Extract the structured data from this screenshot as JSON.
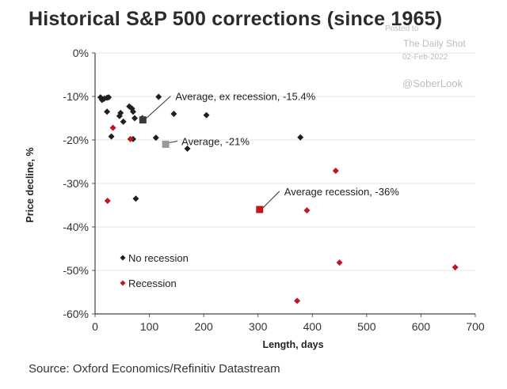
{
  "header": {
    "title": "Historical S&P 500 corrections (since 1965)"
  },
  "watermark": {
    "line1": "Posted to",
    "line2": "The Daily Shot",
    "line3": "02-Feb-2022",
    "line4": "@SoberLook"
  },
  "footer": {
    "source": "Source: Oxford Economics/Refinitiv Datastream"
  },
  "colors": {
    "no_recession": "#1f1f1f",
    "recession": "#c0161f",
    "average_grey": "#9a9a9a",
    "grid": "#e6e6e6"
  },
  "chart_data": {
    "type": "scatter",
    "xlabel": "Length, days",
    "ylabel": "Price decline, %",
    "xlim": [
      0,
      700
    ],
    "ylim": [
      -60,
      0
    ],
    "xticks": [
      "0",
      "100",
      "200",
      "300",
      "400",
      "500",
      "600",
      "700"
    ],
    "yticks": [
      "0%",
      "-10%",
      "-20%",
      "-30%",
      "-40%",
      "-50%",
      "-60%"
    ],
    "legend_position": "bottom-left",
    "series": [
      {
        "name": "No recession",
        "marker": "diamond",
        "color": "#1f1f1f",
        "points": [
          [
            10,
            -10.2
          ],
          [
            13,
            -10.8
          ],
          [
            17,
            -10.5
          ],
          [
            22,
            -10.3
          ],
          [
            25,
            -10.2
          ],
          [
            22,
            -13.5
          ],
          [
            30,
            -19.2
          ],
          [
            45,
            -14.5
          ],
          [
            47,
            -13.8
          ],
          [
            52,
            -15.8
          ],
          [
            63,
            -12.3
          ],
          [
            68,
            -12.8
          ],
          [
            70,
            -13.5
          ],
          [
            70,
            -19.8
          ],
          [
            73,
            -15.0
          ],
          [
            75,
            -33.5
          ],
          [
            87,
            -15.0
          ],
          [
            112,
            -19.5
          ],
          [
            117,
            -10.1
          ],
          [
            145,
            -14.0
          ],
          [
            170,
            -22.0
          ],
          [
            205,
            -14.3
          ],
          [
            378,
            -19.4
          ]
        ]
      },
      {
        "name": "Recession",
        "marker": "diamond",
        "color": "#c0161f",
        "points": [
          [
            23,
            -34.0
          ],
          [
            33,
            -17.2
          ],
          [
            65,
            -19.8
          ],
          [
            372,
            -57.0
          ],
          [
            390,
            -36.2
          ],
          [
            443,
            -27.1
          ],
          [
            450,
            -48.2
          ],
          [
            663,
            -49.3
          ]
        ]
      }
    ],
    "averages": [
      {
        "label": "Average, ex recession, -15.4%",
        "x": 88,
        "y": -15.4,
        "color": "#3a3a3a"
      },
      {
        "label": "Average, -21%",
        "x": 130,
        "y": -21.0,
        "color": "#9a9a9a"
      },
      {
        "label": "Average recession, -36%",
        "x": 303,
        "y": -36.0,
        "color": "#c0161f"
      }
    ]
  }
}
